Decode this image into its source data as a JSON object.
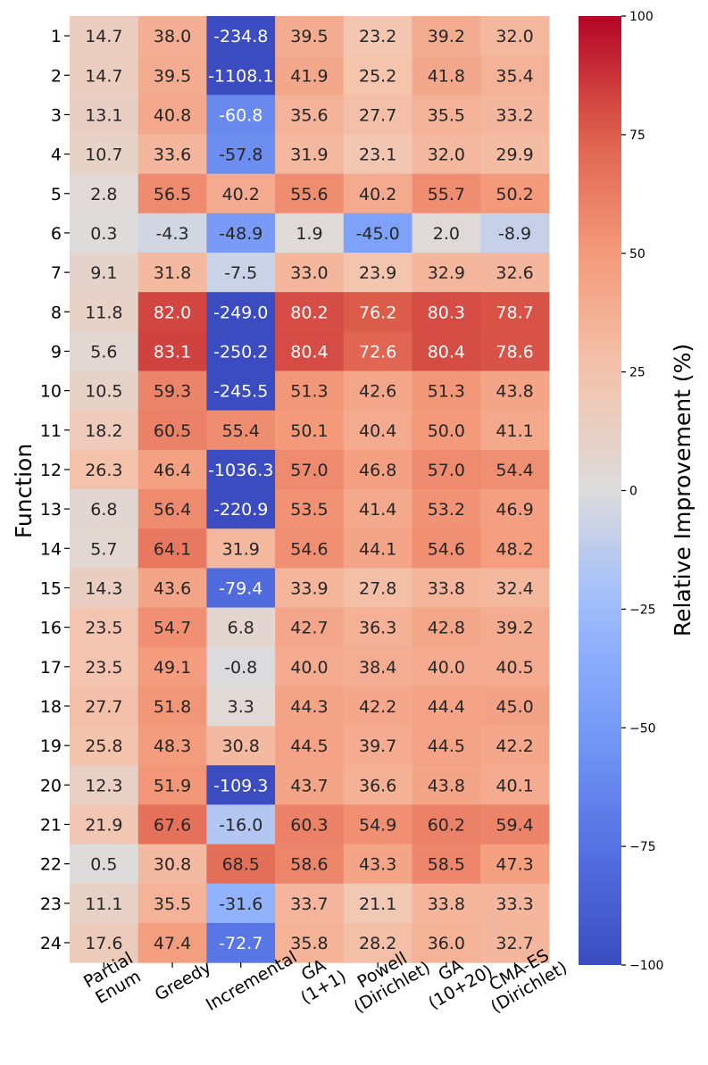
{
  "chart_data": {
    "type": "heatmap",
    "title": "",
    "xlabel": "",
    "ylabel": "Function",
    "colorbar_label": "Relative Improvement (%)",
    "x_categories": [
      [
        "Partial",
        "Enum"
      ],
      [
        "Greedy"
      ],
      [
        "Incremental"
      ],
      [
        "GA",
        "(1+1)"
      ],
      [
        "Powell",
        "(Dirichlet)"
      ],
      [
        "GA",
        "(10+20)"
      ],
      [
        "CMA-ES",
        "(Dirichlet)"
      ]
    ],
    "y_categories": [
      "1",
      "2",
      "3",
      "4",
      "5",
      "6",
      "7",
      "8",
      "9",
      "10",
      "11",
      "12",
      "13",
      "14",
      "15",
      "16",
      "17",
      "18",
      "19",
      "20",
      "21",
      "22",
      "23",
      "24"
    ],
    "values": [
      [
        14.7,
        38.0,
        -234.8,
        39.5,
        23.2,
        39.2,
        32.0
      ],
      [
        14.7,
        39.5,
        -1108.1,
        41.9,
        25.2,
        41.8,
        35.4
      ],
      [
        13.1,
        40.8,
        -60.8,
        35.6,
        27.7,
        35.5,
        33.2
      ],
      [
        10.7,
        33.6,
        -57.8,
        31.9,
        23.1,
        32.0,
        29.9
      ],
      [
        2.8,
        56.5,
        40.2,
        55.6,
        40.2,
        55.7,
        50.2
      ],
      [
        0.3,
        -4.3,
        -48.9,
        1.9,
        -45.0,
        2.0,
        -8.9
      ],
      [
        9.1,
        31.8,
        -7.5,
        33.0,
        23.9,
        32.9,
        32.6
      ],
      [
        11.8,
        82.0,
        -249.0,
        80.2,
        76.2,
        80.3,
        78.7
      ],
      [
        5.6,
        83.1,
        -250.2,
        80.4,
        72.6,
        80.4,
        78.6
      ],
      [
        10.5,
        59.3,
        -245.5,
        51.3,
        42.6,
        51.3,
        43.8
      ],
      [
        18.2,
        60.5,
        55.4,
        50.1,
        40.4,
        50.0,
        41.1
      ],
      [
        26.3,
        46.4,
        -1036.3,
        57.0,
        46.8,
        57.0,
        54.4
      ],
      [
        6.8,
        56.4,
        -220.9,
        53.5,
        41.4,
        53.2,
        46.9
      ],
      [
        5.7,
        64.1,
        31.9,
        54.6,
        44.1,
        54.6,
        48.2
      ],
      [
        14.3,
        43.6,
        -79.4,
        33.9,
        27.8,
        33.8,
        32.4
      ],
      [
        23.5,
        54.7,
        6.8,
        42.7,
        36.3,
        42.8,
        39.2
      ],
      [
        23.5,
        49.1,
        -0.8,
        40.0,
        38.4,
        40.0,
        40.5
      ],
      [
        27.7,
        51.8,
        3.3,
        44.3,
        42.2,
        44.4,
        45.0
      ],
      [
        25.8,
        48.3,
        30.8,
        44.5,
        39.7,
        44.5,
        42.2
      ],
      [
        12.3,
        51.9,
        -109.3,
        43.7,
        36.6,
        43.8,
        40.1
      ],
      [
        21.9,
        67.6,
        -16.0,
        60.3,
        54.9,
        60.2,
        59.4
      ],
      [
        0.5,
        30.8,
        68.5,
        58.6,
        43.3,
        58.5,
        47.3
      ],
      [
        11.1,
        35.5,
        -31.6,
        33.7,
        21.1,
        33.8,
        33.3
      ],
      [
        17.6,
        47.4,
        -72.7,
        35.8,
        28.2,
        36.0,
        32.7
      ]
    ],
    "value_format": "one-decimal",
    "colormap": "coolwarm",
    "vmin": -100,
    "vmax": 100,
    "colorbar_ticks": [
      100,
      75,
      50,
      25,
      0,
      -25,
      -50,
      -75,
      -100
    ],
    "colorbar_tick_labels": [
      "100",
      "75",
      "50",
      "25",
      "0",
      "−25",
      "−50",
      "−75",
      "−100"
    ],
    "grid": false,
    "legend": "colorbar-right",
    "colors": {
      "cold": "#3b4cc0",
      "neutral": "#dddddd",
      "warm": "#b40426",
      "text_dark": "#262626",
      "text_light": "#ffffff",
      "axis": "#000000"
    }
  }
}
